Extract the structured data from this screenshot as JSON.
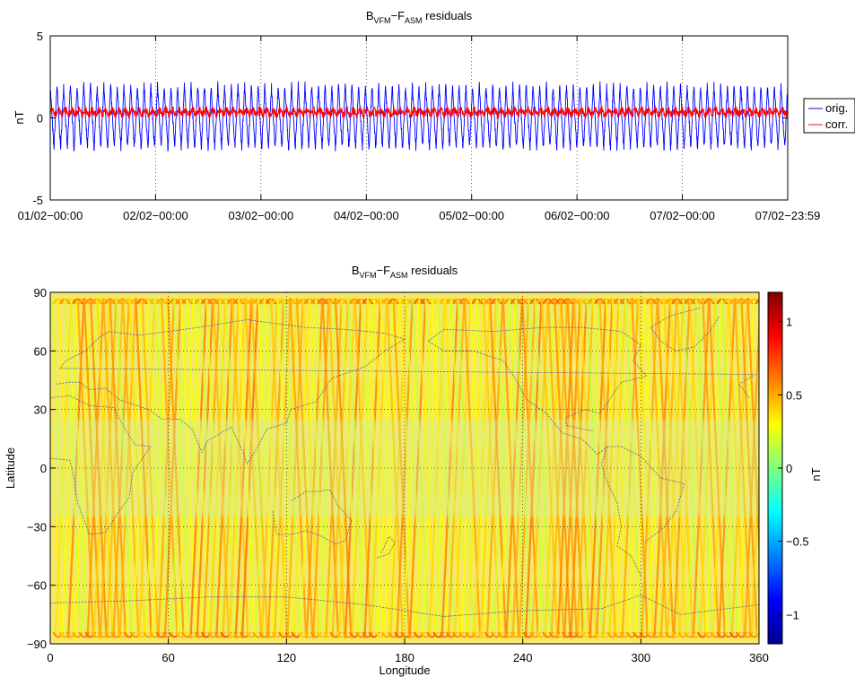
{
  "chart_data": [
    {
      "type": "line",
      "title": {
        "main": "B",
        "sub1": "VFM",
        "mid": "−F",
        "sub2": "ASM",
        "tail": " residuals"
      },
      "ylabel": "nT",
      "xlabel": "",
      "ylim": [
        -5,
        5
      ],
      "yticks": [
        "-5",
        "0",
        "5"
      ],
      "xticks": [
        "01/02−00:00",
        "02/02−00:00",
        "03/02−00:00",
        "04/02−00:00",
        "05/02−00:00",
        "06/02−00:00",
        "07/02−00:00",
        "07/02−23:59"
      ],
      "x_range_days": [
        0,
        7
      ],
      "grid": "x-only dotted",
      "legend_position": "right, outside",
      "series": [
        {
          "name": "orig.",
          "color": "#0000ff",
          "orbit_cycles": 110,
          "mean": 0.1,
          "max": 2.0,
          "min": -1.9
        },
        {
          "name": "corr.",
          "color": "#ff0000",
          "mean": 0.35,
          "max": 0.8,
          "min": -0.2
        }
      ]
    },
    {
      "type": "heatmap",
      "title": {
        "main": "B",
        "sub1": "VFM",
        "mid": "−F",
        "sub2": "ASM",
        "tail": " residuals"
      },
      "xlabel": "Longitude",
      "ylabel": "Latitude",
      "xlim": [
        0,
        360
      ],
      "ylim": [
        -90,
        90
      ],
      "xticks": [
        "0",
        "60",
        "120",
        "180",
        "240",
        "300",
        "360"
      ],
      "yticks": [
        "90",
        "60",
        "30",
        "0",
        "−30",
        "−60",
        "−90"
      ],
      "grid": "dotted",
      "colorbar": {
        "label": "nT",
        "clim": [
          -1.2,
          1.2
        ],
        "ticks": [
          "1",
          "0.5",
          "0",
          "−0.5",
          "−1"
        ],
        "colormap": "jet"
      },
      "orbit_tracks": 110,
      "typical_value_nT": 0.3,
      "overlay": "coastlines"
    }
  ]
}
